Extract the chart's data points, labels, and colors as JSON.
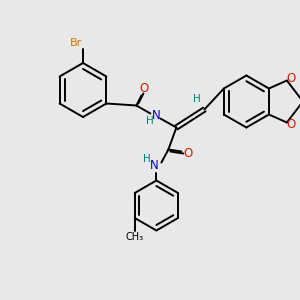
{
  "background_color": "#e8e8e8",
  "bond_color": "#000000",
  "atom_colors": {
    "Br": "#cc7700",
    "O": "#cc2200",
    "N": "#0000cc",
    "H": "#008080",
    "C": "#000000"
  }
}
